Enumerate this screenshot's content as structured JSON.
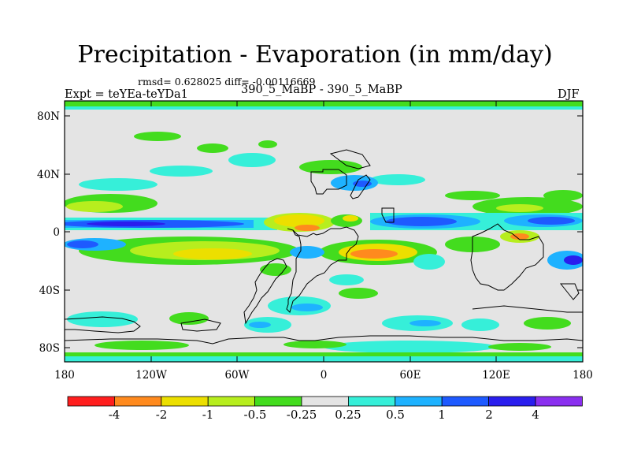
{
  "title": "Precipitation - Evaporation (in mm/day)",
  "stats": "rmsd= 0.628025 diff= -0.00116669",
  "experiment": "Expt = teYEa-teYDa1",
  "runs": "390_5_MaBP - 390_5_MaBP",
  "season": "DJF",
  "axes": {
    "x_ticks": [
      "180",
      "120W",
      "60W",
      "0",
      "60E",
      "120E",
      "180"
    ],
    "y_ticks": [
      "80N",
      "40N",
      "0",
      "40S",
      "80S"
    ]
  },
  "colorbar": {
    "labels": [
      "-4",
      "-2",
      "-1",
      "-0.5",
      "-0.25",
      "0.25",
      "0.5",
      "1",
      "2",
      "4"
    ],
    "colors": [
      "#ff1e1e",
      "#ff8a1e",
      "#ecdf00",
      "#b7ee1e",
      "#43dc1e",
      "#e4e4e4",
      "#36efd9",
      "#1eb2ff",
      "#1e5aff",
      "#2a1eee",
      "#8a2fef"
    ]
  },
  "map_colors": {
    "background": "#e4e4e4",
    "coastline": "#000000"
  }
}
